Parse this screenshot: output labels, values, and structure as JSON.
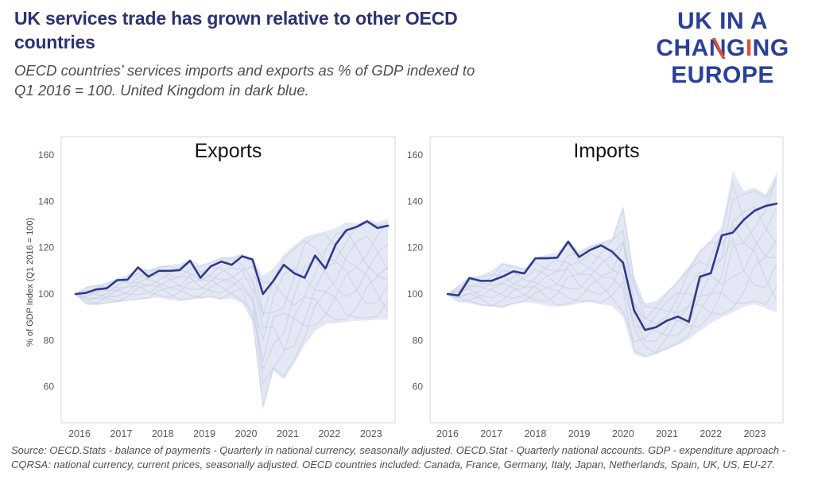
{
  "header": {
    "title_line1": "UK services trade has grown relative to other OECD",
    "title_line2": "countries",
    "subtitle_line1": "OECD countries’ services imports and exports as % of GDP indexed to",
    "subtitle_line2": "Q1 2016 = 100. United Kingdom in dark blue."
  },
  "logo": {
    "line1": "UK IN A",
    "l2_pre": "CHA",
    "l2_n": "N",
    "l2_mid": "G",
    "l2_i": "I",
    "l2_post": "NG",
    "line3": "EUROPE"
  },
  "colors": {
    "title_text": "#2f3173",
    "uk_line": "#2f3a8a",
    "band_fill": "#dde2f1",
    "other_lines": "#c7cde1",
    "plot_border": "#d7d7d7",
    "tick_text": "#595959",
    "logo_blue": "#2b4099",
    "logo_orange": "#e4502e"
  },
  "chart_data": [
    {
      "type": "line",
      "title": "Exports",
      "ylabel": "% of GDP Index (Q1 2016 = 100)",
      "x_unit": "quarter",
      "x_start": "2016-Q1",
      "x_end": "2023-Q3",
      "x_tick_labels": [
        "2016",
        "2017",
        "2018",
        "2019",
        "2020",
        "2021",
        "2022",
        "2023"
      ],
      "y_ticks": [
        160,
        140,
        120,
        100,
        80,
        60
      ],
      "ylim": [
        44,
        168
      ],
      "grid": false,
      "legend": "none",
      "series": [
        {
          "name": "United Kingdom",
          "values": [
            100,
            100.5,
            102,
            102.5,
            106,
            106.2,
            111.5,
            107.5,
            110,
            110,
            110.3,
            114.4,
            107,
            112,
            114,
            112.6,
            116.3,
            114.9,
            100,
            105.7,
            112.6,
            109,
            107,
            116.6,
            111,
            121.5,
            127.5,
            129,
            131.4,
            128.5,
            129.5
          ]
        }
      ],
      "band": {
        "name": "range of other OECD countries",
        "upper": [
          100,
          103,
          104,
          105,
          107,
          108,
          111.5,
          110.5,
          112,
          112.5,
          113,
          115,
          112.5,
          114,
          116,
          116,
          117.5,
          115.5,
          108,
          111,
          117,
          121,
          124.5,
          126,
          127,
          128.5,
          131,
          130.5,
          132,
          131,
          132.5
        ],
        "lower": [
          100,
          95.5,
          95,
          96,
          96.5,
          97,
          97.5,
          98,
          98.5,
          97.5,
          97,
          97.5,
          98,
          98.5,
          97.5,
          98,
          96,
          88,
          50,
          67,
          63,
          70,
          78,
          84,
          87,
          87.5,
          88,
          88.5,
          88.5,
          89,
          89
        ]
      }
    },
    {
      "type": "line",
      "title": "Imports",
      "ylabel": "",
      "x_unit": "quarter",
      "x_start": "2016-Q1",
      "x_end": "2023-Q3",
      "x_tick_labels": [
        "2016",
        "2017",
        "2018",
        "2019",
        "2020",
        "2021",
        "2022",
        "2023"
      ],
      "y_ticks": [
        160,
        140,
        120,
        100,
        80,
        60
      ],
      "ylim": [
        44,
        168
      ],
      "grid": false,
      "legend": "none",
      "series": [
        {
          "name": "United Kingdom",
          "values": [
            100,
            99.4,
            106.9,
            105.7,
            105.7,
            107.5,
            109.8,
            108.9,
            115.4,
            115.4,
            115.7,
            122.6,
            116,
            119,
            121,
            118.3,
            113.5,
            93,
            84.5,
            85.7,
            88.5,
            90.3,
            88,
            107.5,
            109,
            125.3,
            126.5,
            132,
            136,
            138,
            139
          ]
        }
      ],
      "band": {
        "name": "range of other OECD countries",
        "upper": [
          100,
          103.5,
          107.5,
          108,
          110,
          113.5,
          112.5,
          111,
          115.8,
          117,
          118,
          123.5,
          118.5,
          121,
          122.5,
          124,
          138.3,
          108,
          96,
          97,
          101,
          106,
          112,
          119,
          123.5,
          129,
          153,
          144.5,
          146,
          143,
          152.5
        ],
        "lower": [
          100,
          96.5,
          96,
          95,
          94.5,
          94,
          95.5,
          96.5,
          96,
          95,
          94.5,
          95,
          96,
          96.5,
          95.5,
          95,
          90,
          74,
          72.5,
          74,
          76,
          78,
          80.5,
          84,
          87.5,
          90,
          92,
          94.5,
          95.5,
          94,
          92
        ]
      }
    }
  ],
  "footer": {
    "line1": "Source: OECD.Stats - balance of payments - Quarterly in national currency,  seasonally adjusted. OECD.Stat - Quarterly national accounts. GDP - expenditure approach -",
    "line2": "CQRSA: national currency, current prices, seasonally adjusted.  OECD countries included: Canada, France, Germany, Italy, Japan, Netherlands, Spain, UK, US, EU-27."
  }
}
